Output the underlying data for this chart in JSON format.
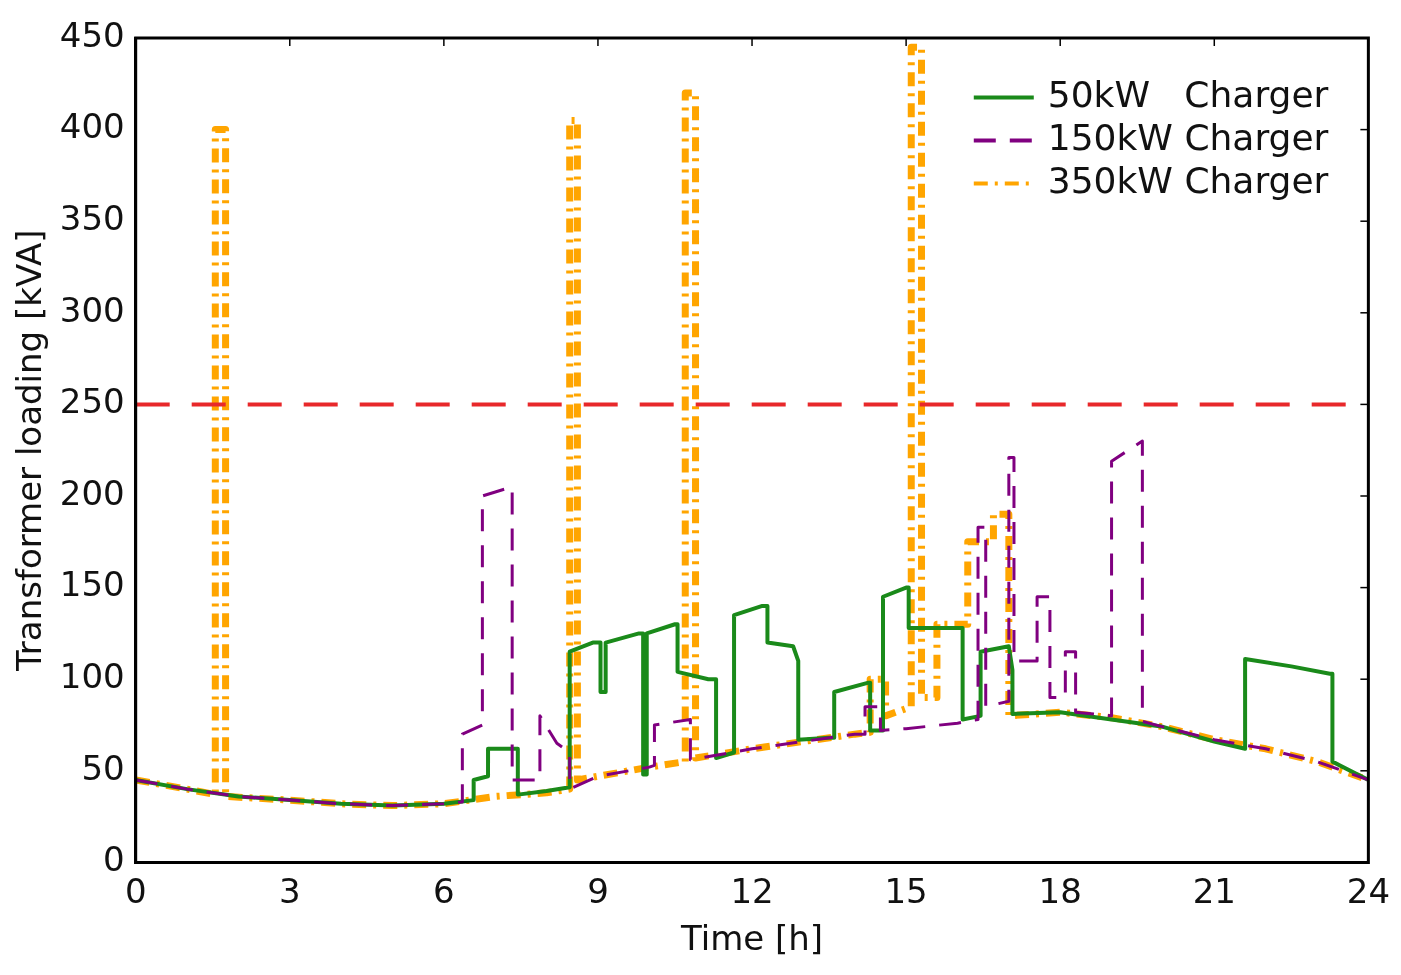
{
  "chart_data": {
    "type": "line",
    "xlabel": "Time [h]",
    "ylabel": "Transformer loading [kVA]",
    "xlim": [
      0,
      24
    ],
    "xticks": [
      0,
      3,
      6,
      9,
      12,
      15,
      18,
      21,
      24
    ],
    "ylim": [
      0,
      450
    ],
    "yticks": [
      0,
      50,
      100,
      150,
      200,
      250,
      300,
      350,
      400,
      450
    ],
    "grid": false,
    "legend": "top right",
    "marker": "none",
    "ref_lines": [
      {
        "axis": "y",
        "value": 250,
        "label": null,
        "color": "#e8282a",
        "line_style": "dashed"
      }
    ],
    "series": [
      {
        "name": "50kW   Charger",
        "color": "#1a8a1a",
        "line_style": "solid",
        "x": [
          0,
          1,
          2,
          3,
          4,
          5,
          6,
          6.58,
          6.58,
          6.86,
          6.86,
          7.44,
          7.44,
          8.0,
          8.45,
          8.45,
          8.9,
          9.05,
          9.05,
          9.15,
          9.15,
          9.8,
          9.88,
          9.88,
          9.95,
          9.95,
          10.5,
          10.55,
          10.55,
          11.15,
          11.3,
          11.3,
          11.65,
          11.65,
          12.2,
          12.3,
          12.3,
          12.8,
          12.9,
          12.9,
          13.5,
          13.6,
          13.6,
          14.25,
          14.3,
          14.3,
          14.55,
          14.55,
          15.0,
          15.05,
          15.05,
          16.1,
          16.1,
          16.45,
          16.45,
          17.0,
          17.07,
          17.07,
          18,
          19,
          20,
          21,
          21.6,
          21.6,
          22.5,
          23.25,
          23.3,
          23.3,
          24
        ],
        "values": [
          45,
          40,
          36,
          34,
          32,
          31,
          32,
          34,
          45,
          47,
          62,
          62,
          37,
          39,
          41,
          115,
          120,
          120,
          93,
          93,
          120,
          125,
          125,
          48,
          48,
          125,
          130,
          130,
          104,
          100,
          100,
          57,
          60,
          135,
          140,
          140,
          120,
          118,
          110,
          67,
          68,
          68,
          93,
          98,
          98,
          72,
          72,
          145,
          150,
          150,
          128,
          128,
          78,
          80,
          115,
          118,
          105,
          81,
          82,
          78,
          74,
          66,
          62,
          111,
          107,
          103,
          103,
          55,
          45
        ]
      },
      {
        "name": "150kW Charger",
        "color": "#800080",
        "line_style": "dashed",
        "x": [
          0,
          1,
          2,
          3,
          4,
          5,
          6,
          6.36,
          6.36,
          6.75,
          6.75,
          7.33,
          7.33,
          7.87,
          7.87,
          8.2,
          8.45,
          8.45,
          9,
          10,
          10.1,
          10.1,
          10.8,
          10.8,
          11,
          12,
          13,
          14,
          14.2,
          14.2,
          14.5,
          14.5,
          15,
          16,
          16.4,
          16.4,
          16.55,
          16.55,
          17.0,
          17.0,
          17.1,
          17.1,
          17.55,
          17.55,
          17.8,
          17.8,
          18.1,
          18.1,
          18.3,
          18.3,
          19.0,
          19.0,
          19.6,
          19.6,
          20,
          21,
          22,
          23,
          24
        ],
        "values": [
          45,
          40,
          36,
          34,
          32,
          31,
          32,
          33,
          70,
          75,
          200,
          205,
          45,
          45,
          80,
          65,
          60,
          40,
          47,
          52,
          53,
          75,
          78,
          56,
          57,
          62,
          66,
          70,
          70,
          85,
          85,
          72,
          73,
          76,
          78,
          183,
          183,
          85,
          88,
          221,
          221,
          110,
          110,
          145,
          145,
          90,
          90,
          115,
          115,
          82,
          80,
          219,
          230,
          77,
          74,
          67,
          62,
          55,
          45
        ]
      },
      {
        "name": "350kW Charger",
        "color": "#ffa500",
        "line_style": "dotted",
        "x": [
          0,
          1,
          1.55,
          1.55,
          1.75,
          1.75,
          3,
          4,
          5,
          6,
          7,
          8,
          8.45,
          8.45,
          8.6,
          8.6,
          9,
          10,
          10.7,
          10.7,
          10.9,
          10.9,
          12,
          13,
          14,
          14.3,
          14.3,
          14.6,
          14.6,
          15.1,
          15.1,
          15.3,
          15.3,
          15.6,
          15.6,
          16.2,
          16.2,
          16.7,
          16.7,
          17.0,
          17.0,
          18,
          19,
          20,
          21,
          22,
          23,
          24
        ],
        "values": [
          45,
          40,
          37,
          400,
          400,
          36,
          34,
          32,
          31,
          32,
          36,
          38,
          40,
          405,
          405,
          45,
          47,
          52,
          55,
          420,
          420,
          57,
          62,
          66,
          70,
          71,
          100,
          100,
          80,
          85,
          445,
          445,
          90,
          90,
          130,
          130,
          175,
          175,
          190,
          190,
          80,
          82,
          79,
          74,
          67,
          62,
          55,
          45
        ]
      }
    ]
  }
}
